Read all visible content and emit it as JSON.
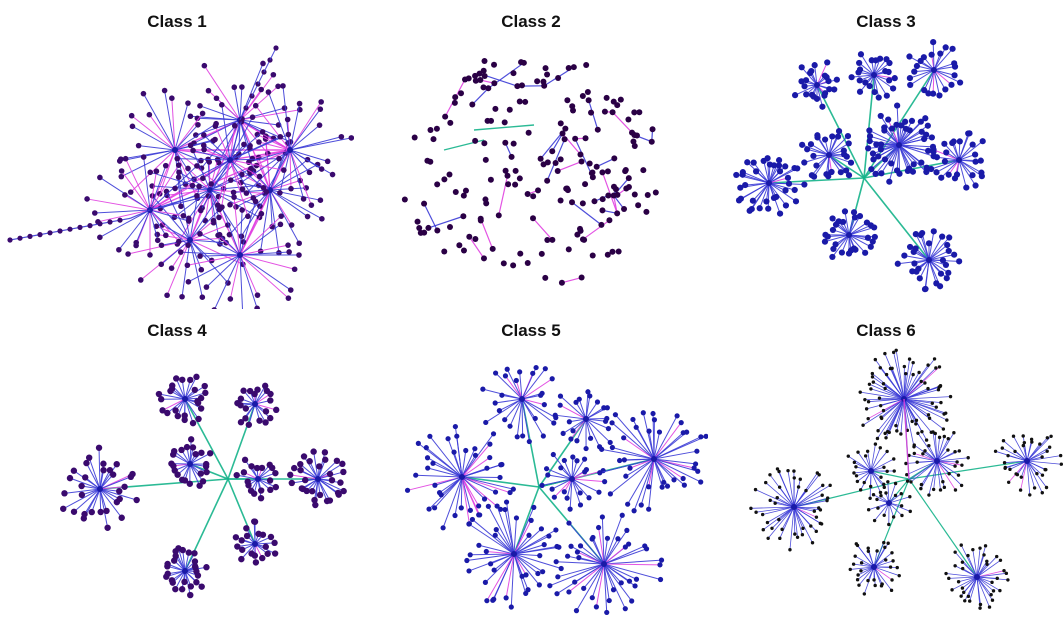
{
  "figure": {
    "panels": [
      {
        "title": "Class 1",
        "style": "dense-blob"
      },
      {
        "title": "Class 2",
        "style": "mesh"
      },
      {
        "title": "Class 3",
        "style": "hub-spoke-clusters"
      },
      {
        "title": "Class 4",
        "style": "hub-spoke-clusters"
      },
      {
        "title": "Class 5",
        "style": "hub-spoke-stars"
      },
      {
        "title": "Class 6",
        "style": "hub-spoke-stars-fine"
      }
    ],
    "colors": {
      "node": "#3a0a6e",
      "node_dark": "#2a0045",
      "node_blue": "#1a1aa8",
      "edge_blue": "#3b3bd6",
      "edge_pink": "#e040e0",
      "edge_teal": "#14b38a",
      "node_black": "#111111"
    }
  }
}
